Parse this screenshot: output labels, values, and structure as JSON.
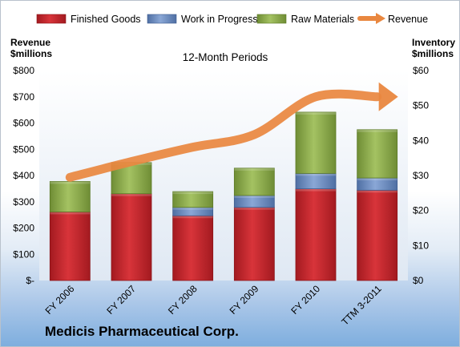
{
  "chart_data": {
    "type": "bar",
    "stacked": true,
    "title": "12-Month Periods",
    "categories": [
      "FY 2006",
      "FY 2007",
      "FY 2008",
      "FY 2009",
      "FY 2010",
      "TTM 3-2011"
    ],
    "series": [
      {
        "name": "Finished Goods",
        "axis": "right",
        "color": "#c0272d",
        "values": [
          19.6,
          24.8,
          18.5,
          20.9,
          26.2,
          25.8
        ]
      },
      {
        "name": "Work in Progress",
        "axis": "right",
        "color": "#6f8fc0",
        "values": [
          0,
          0,
          2.4,
          3.4,
          4.4,
          3.5
        ]
      },
      {
        "name": "Raw Materials",
        "axis": "right",
        "color": "#8fae4e",
        "values": [
          8.7,
          8.9,
          4.5,
          7.8,
          17.5,
          13.8
        ]
      },
      {
        "name": "Revenue",
        "axis": "left",
        "type": "line",
        "color": "#e9873f",
        "values": [
          393,
          453,
          508,
          556,
          700,
          700
        ]
      }
    ],
    "left_axis": {
      "title_line1": "Revenue",
      "title_line2": "$millions",
      "ylim": [
        0,
        800
      ],
      "ticks": [
        "$-",
        "$100",
        "$200",
        "$300",
        "$400",
        "$500",
        "$600",
        "$700",
        "$800"
      ]
    },
    "right_axis": {
      "title_line1": "Inventory",
      "title_line2": "$millions",
      "ylim": [
        0,
        60
      ],
      "ticks": [
        "$0",
        "$10",
        "$20",
        "$30",
        "$40",
        "$50",
        "$60"
      ]
    },
    "legend_position": "top",
    "grid": false
  },
  "company_name": "Medicis Pharmaceutical Corp."
}
